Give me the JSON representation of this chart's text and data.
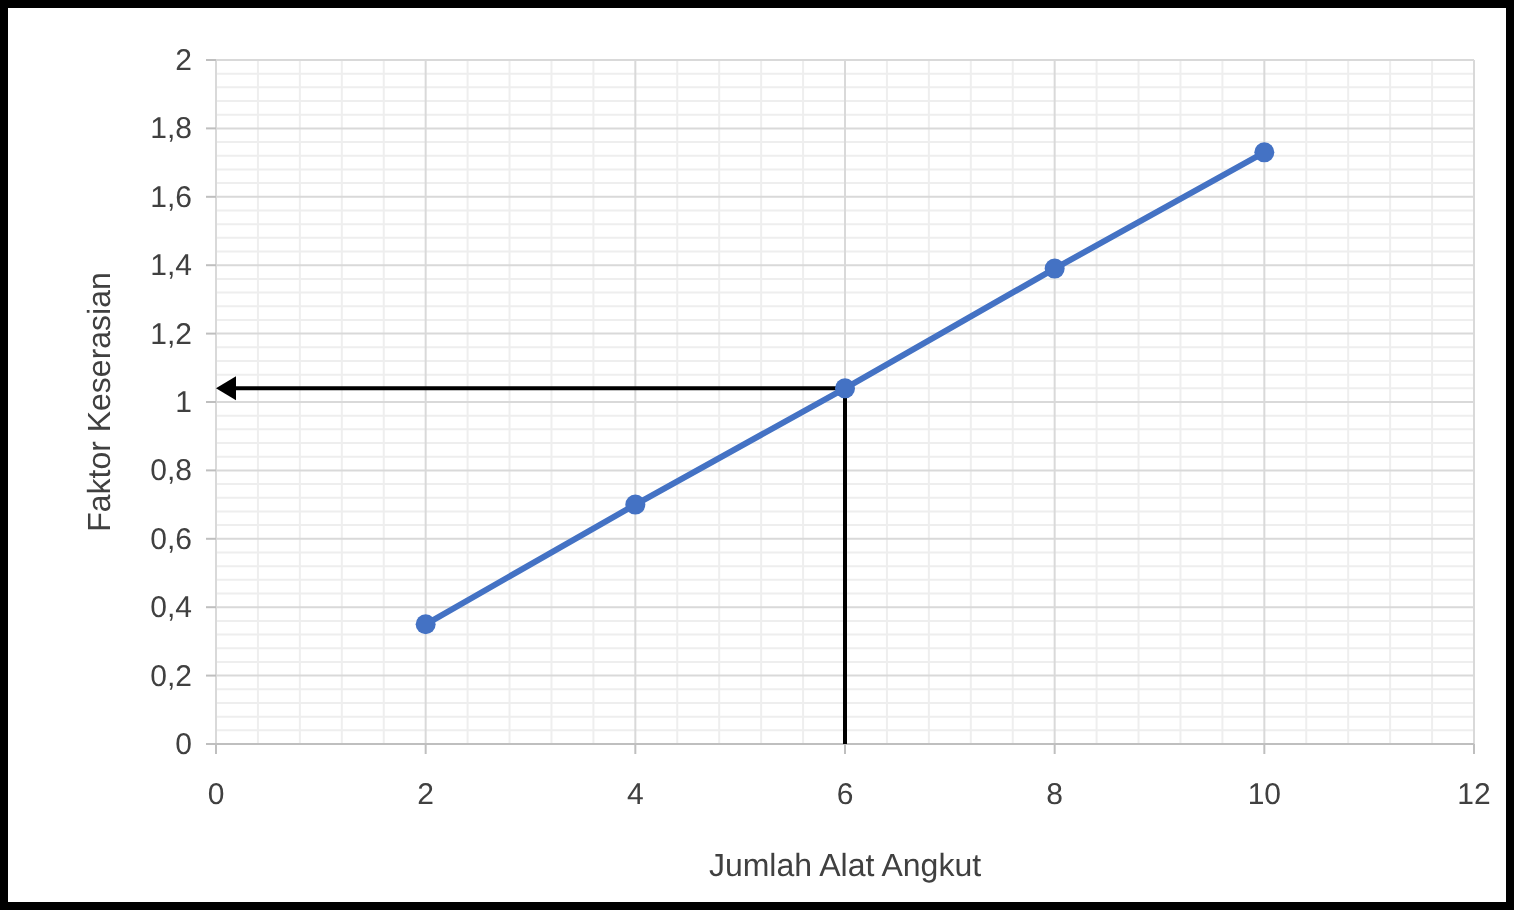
{
  "chart_data": {
    "type": "line",
    "xlabel": "Jumlah Alat Angkut",
    "ylabel": "Faktor Keserasian",
    "x": [
      2,
      4,
      6,
      8,
      10
    ],
    "series": [
      {
        "color": "#4472c4",
        "values": [
          0.35,
          0.7,
          1.04,
          1.39,
          1.73
        ]
      }
    ],
    "xlim": [
      0,
      12
    ],
    "xticks": [
      0,
      2,
      4,
      6,
      8,
      10,
      12
    ],
    "ylim": [
      0,
      2
    ],
    "yticks": [
      0,
      {
        "value": 0.2,
        "label": "0,2"
      },
      {
        "value": 0.4,
        "label": "0,4"
      },
      {
        "value": 0.6,
        "label": "0,6"
      },
      {
        "value": 0.8,
        "label": "0,8"
      },
      1,
      {
        "value": 1.2,
        "label": "1,2"
      },
      {
        "value": 1.4,
        "label": "1,4"
      },
      {
        "value": 1.6,
        "label": "1,6"
      },
      {
        "value": 1.8,
        "label": "1,8"
      },
      2
    ],
    "grid": true,
    "marker": "circle",
    "line_style": "solid"
  }
}
